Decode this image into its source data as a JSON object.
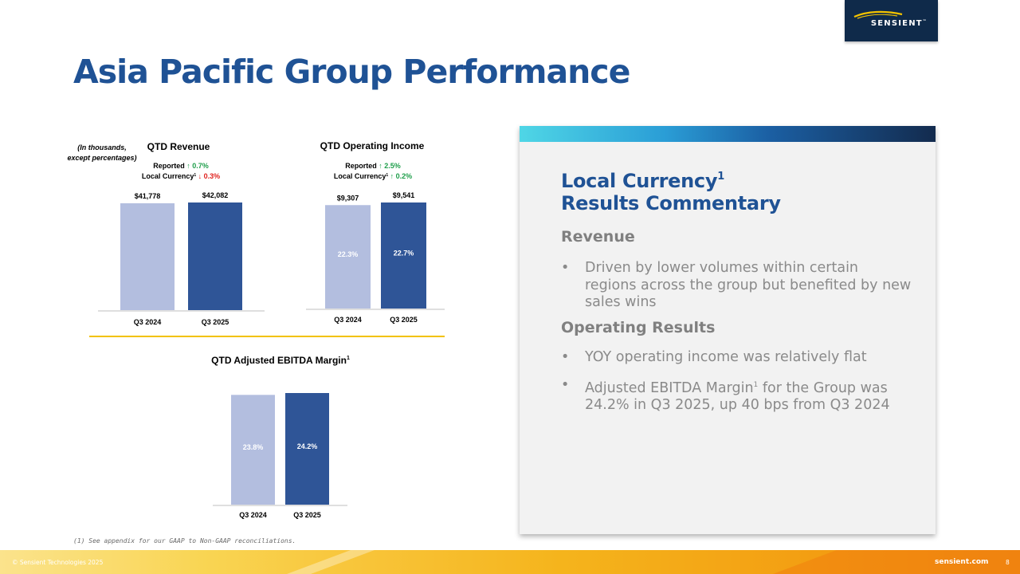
{
  "logo": {
    "text": "SENSIENT",
    "mark": "™"
  },
  "title": "Asia Pacific Group Performance",
  "units_note": [
    "(In thousands,",
    "except percentages)"
  ],
  "colors": {
    "bar_prior": "#b3bedf",
    "bar_current": "#2f5597",
    "title_blue": "#1f5295",
    "up_green": "#1e9e4a",
    "down_red": "#e0211e",
    "divider_gold": "#f2c200"
  },
  "chart_data": [
    {
      "type": "bar",
      "title": "QTD Revenue",
      "changes": [
        {
          "label": "Reported",
          "sup": "",
          "arrow": "↑",
          "value": "0.7%",
          "direction": "up"
        },
        {
          "label": "Local Currency",
          "sup": "1",
          "arrow": "↓",
          "value": "0.3%",
          "direction": "down"
        }
      ],
      "categories": [
        "Q3 2024",
        "Q3 2025"
      ],
      "values": [
        41778,
        42082
      ],
      "value_labels": [
        "$41,778",
        "$42,082"
      ],
      "inner_labels": [
        "",
        ""
      ],
      "ylim": [
        0,
        42082
      ]
    },
    {
      "type": "bar",
      "title": "QTD Operating Income",
      "changes": [
        {
          "label": "Reported",
          "sup": "",
          "arrow": "↑",
          "value": "2.5%",
          "direction": "up"
        },
        {
          "label": "Local Currency",
          "sup": "1",
          "arrow": "↑",
          "value": "0.2%",
          "direction": "up"
        }
      ],
      "categories": [
        "Q3 2024",
        "Q3 2025"
      ],
      "values": [
        9307,
        9541
      ],
      "value_labels": [
        "$9,307",
        "$9,541"
      ],
      "inner_labels": [
        "22.3%",
        "22.7%"
      ],
      "ylim": [
        0,
        9541
      ]
    },
    {
      "type": "bar",
      "title": "QTD Adjusted EBITDA Margin",
      "title_sup": "1",
      "changes": [],
      "categories": [
        "Q3 2024",
        "Q3 2025"
      ],
      "values": [
        23.8,
        24.2
      ],
      "value_labels": [
        "",
        ""
      ],
      "inner_labels": [
        "23.8%",
        "24.2%"
      ],
      "ylim": [
        0,
        24.2
      ]
    }
  ],
  "panel": {
    "title_line1": "Local Currency",
    "title_sup": "1",
    "title_line2": "Results Commentary",
    "sections": [
      {
        "heading": "Revenue",
        "bullets": [
          {
            "text": "Driven by lower volumes within certain regions across the group but benefited by new sales wins"
          }
        ]
      },
      {
        "heading": "Operating Results",
        "bullets": [
          {
            "text": "YOY operating income was relatively flat"
          },
          {
            "pre": "Adjusted EBITDA Margin",
            "sup": "1",
            "post": " for the Group was 24.2% in Q3 2025, up 40 bps from Q3 2024"
          }
        ]
      }
    ]
  },
  "footnote": "(1) See appendix for our GAAP to Non-GAAP reconciliations.",
  "footer": {
    "copyright": "© Sensient Technologies 2025",
    "site": "sensient.com",
    "page": "8"
  }
}
